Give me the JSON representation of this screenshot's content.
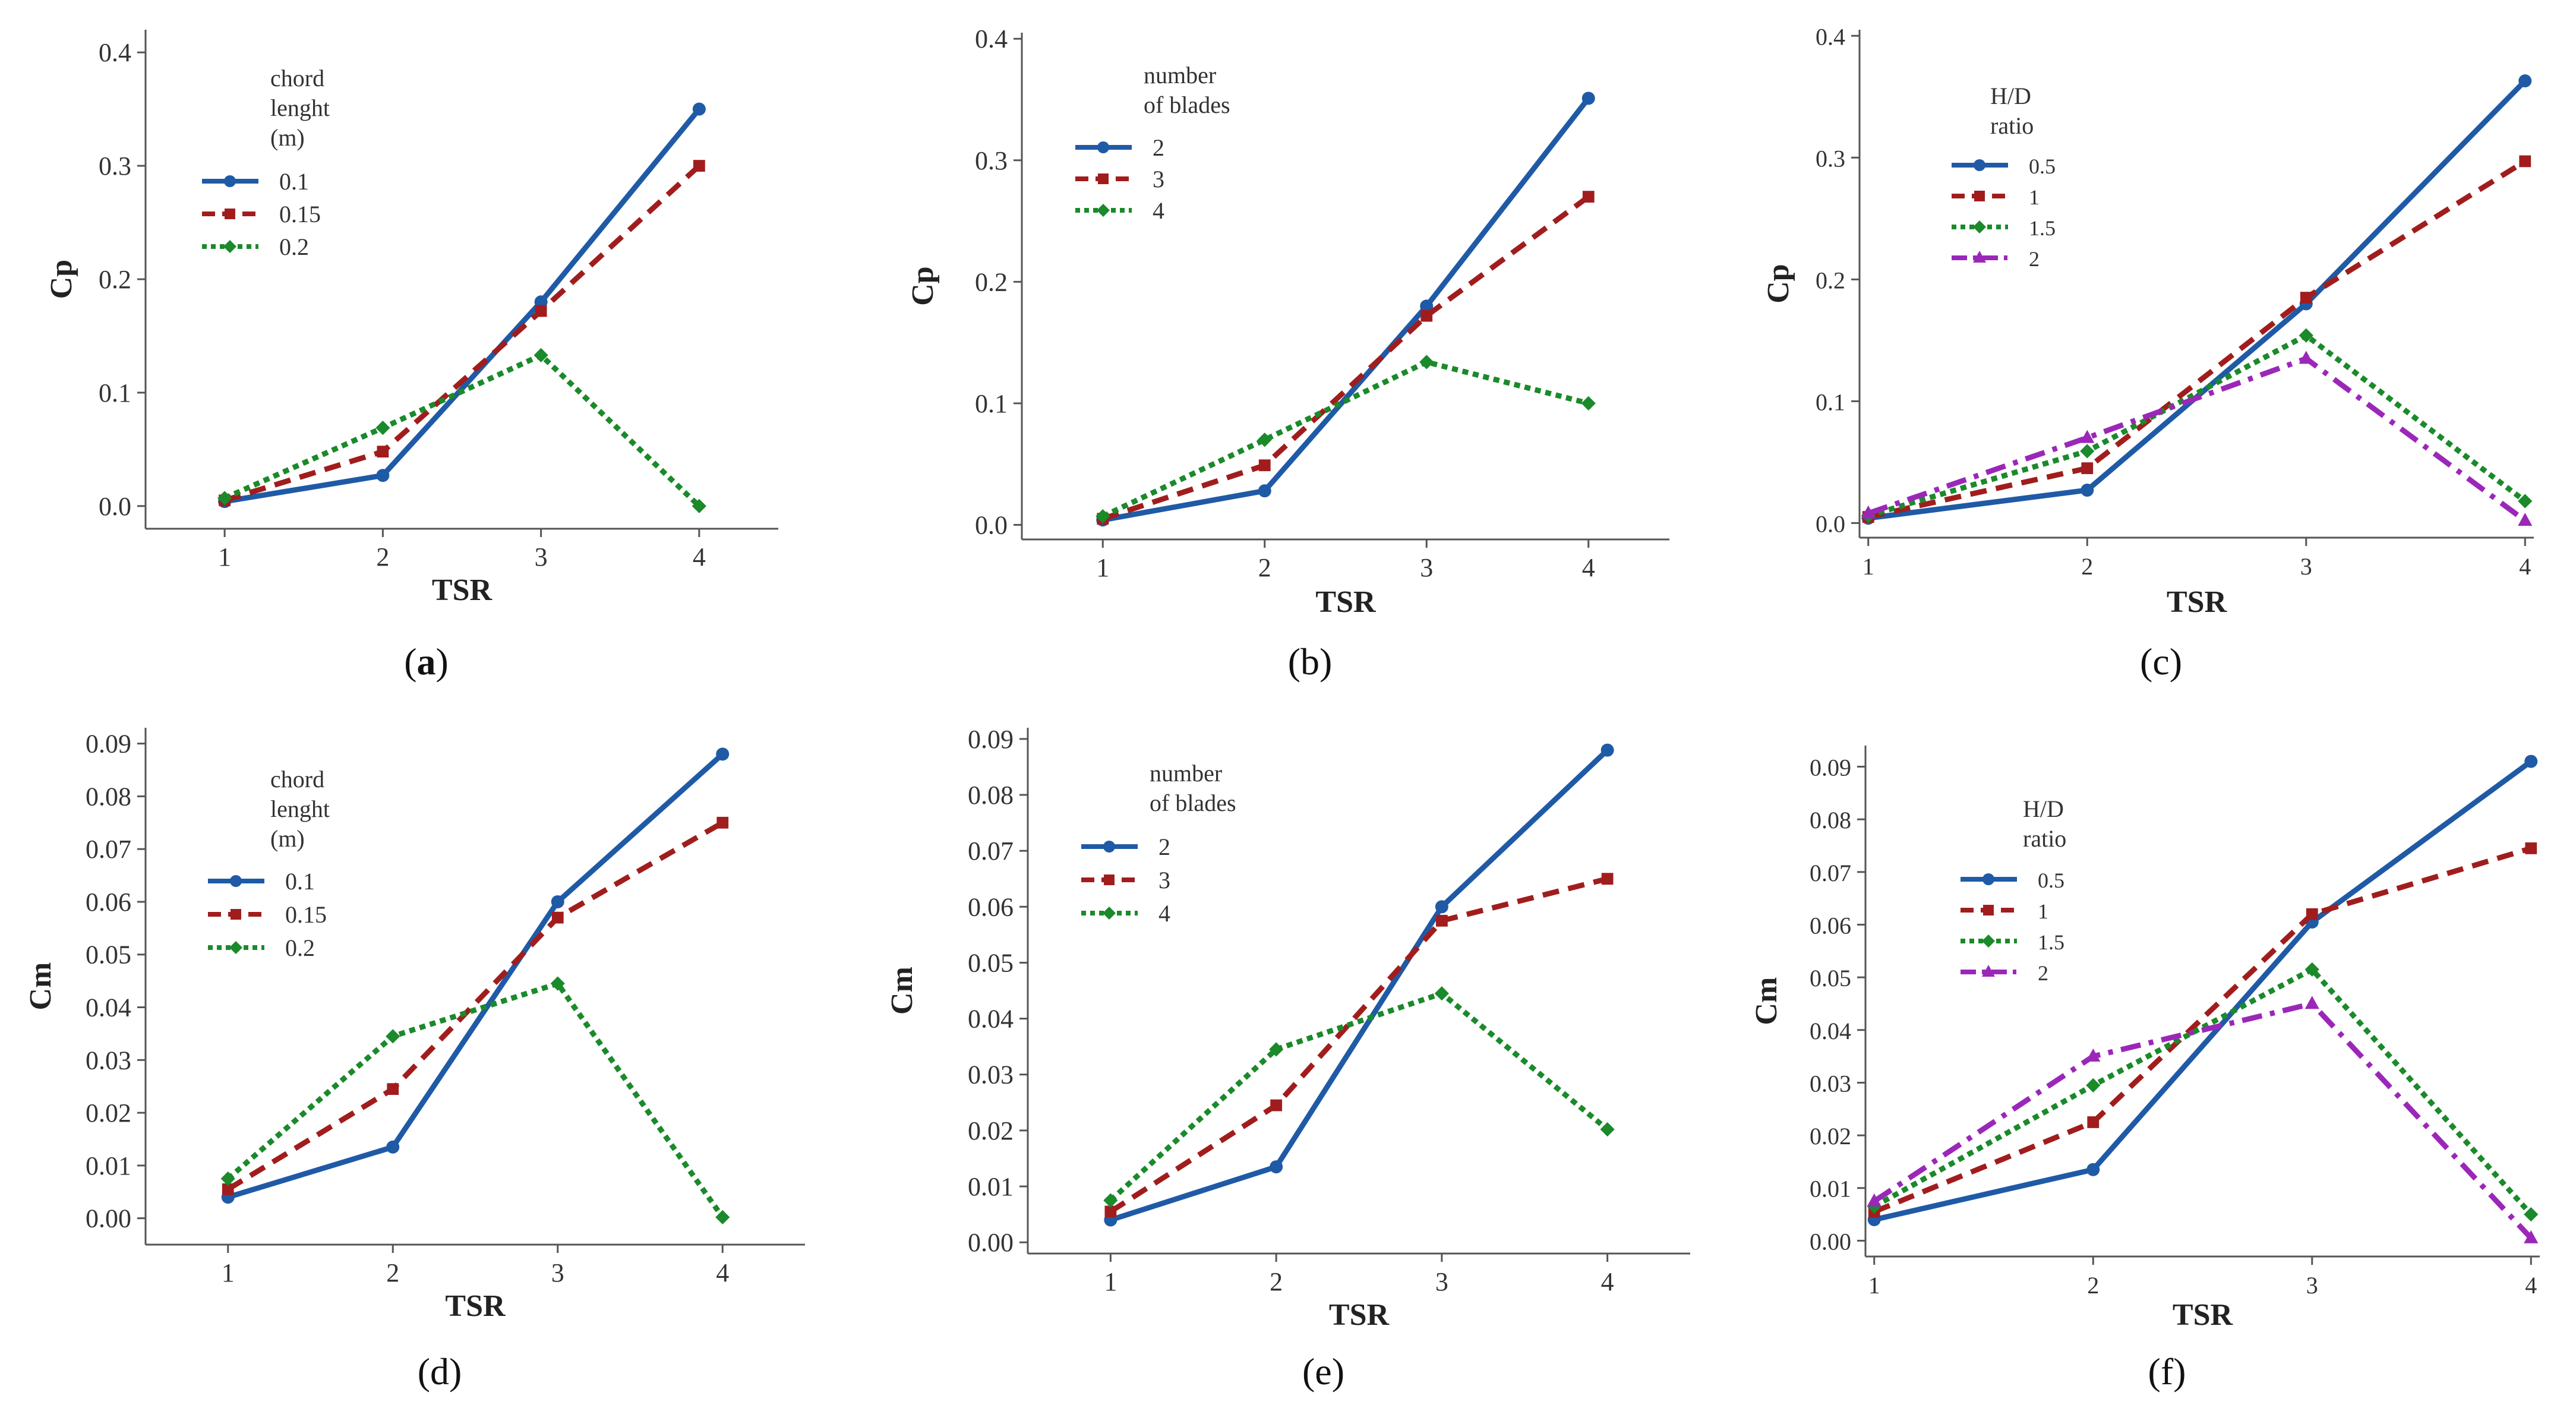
{
  "colors": {
    "blue": "#1f5aa6",
    "red": "#a11d1d",
    "green": "#1a8a2a",
    "purple": "#9b27b8",
    "axis": "#555555"
  },
  "chart_data": [
    {
      "type": "line",
      "caption": {
        "open": "(",
        "letter": "a",
        "close": ")"
      },
      "xlabel": "TSR",
      "ylabel": "Cp",
      "x": [
        1,
        2,
        3,
        4
      ],
      "xlim": [
        0.5,
        4.5
      ],
      "ylim": [
        -0.02,
        0.42
      ],
      "yticks": [
        "0.0",
        "0.1",
        "0.2",
        "0.3",
        "0.4"
      ],
      "xticks": [
        "1",
        "2",
        "3",
        "4"
      ],
      "legend_title": [
        "chord",
        "lenght",
        "(m)"
      ],
      "series": [
        {
          "name": "0.1",
          "values": [
            0.004,
            0.027,
            0.18,
            0.35
          ],
          "style": "solid",
          "color": "blue",
          "marker": "circle"
        },
        {
          "name": "0.15",
          "values": [
            0.005,
            0.048,
            0.172,
            0.3
          ],
          "style": "dashed",
          "color": "red",
          "marker": "square"
        },
        {
          "name": "0.2",
          "values": [
            0.007,
            0.069,
            0.133,
            0.0
          ],
          "style": "dotted",
          "color": "green",
          "marker": "diamond"
        }
      ]
    },
    {
      "type": "line",
      "caption": {
        "open": "(",
        "letter": "b",
        "close": ")"
      },
      "xlabel": "TSR",
      "ylabel": "Cp",
      "x": [
        1,
        2,
        3,
        4
      ],
      "xlim": [
        0.5,
        4.5
      ],
      "ylim": [
        -0.012,
        0.405
      ],
      "yticks": [
        "0.0",
        "0.1",
        "0.2",
        "0.3",
        "0.4"
      ],
      "xticks": [
        "1",
        "2",
        "3",
        "4"
      ],
      "legend_title": [
        "number",
        "of blades"
      ],
      "series": [
        {
          "name": "2",
          "values": [
            0.004,
            0.028,
            0.18,
            0.351
          ],
          "style": "solid",
          "color": "blue",
          "marker": "circle"
        },
        {
          "name": "3",
          "values": [
            0.005,
            0.049,
            0.172,
            0.27
          ],
          "style": "dashed",
          "color": "red",
          "marker": "square"
        },
        {
          "name": "4",
          "values": [
            0.007,
            0.07,
            0.134,
            0.1
          ],
          "style": "dotted",
          "color": "green",
          "marker": "diamond"
        }
      ]
    },
    {
      "type": "line",
      "caption": {
        "open": "(",
        "letter": "c",
        "close": ")"
      },
      "xlabel": "TSR",
      "ylabel": "Cp",
      "x": [
        1,
        2,
        3,
        4
      ],
      "xlim": [
        0.96,
        4.04
      ],
      "ylim": [
        -0.012,
        0.405
      ],
      "yticks": [
        "0.0",
        "0.1",
        "0.2",
        "0.3",
        "0.4"
      ],
      "xticks": [
        "1",
        "2",
        "3",
        "4"
      ],
      "legend_title": [
        "H/D",
        "ratio"
      ],
      "series": [
        {
          "name": "0.5",
          "values": [
            0.004,
            0.027,
            0.18,
            0.363
          ],
          "style": "solid",
          "color": "blue",
          "marker": "circle"
        },
        {
          "name": "1",
          "values": [
            0.005,
            0.045,
            0.185,
            0.297
          ],
          "style": "dashed",
          "color": "red",
          "marker": "square"
        },
        {
          "name": "1.5",
          "values": [
            0.006,
            0.059,
            0.154,
            0.018
          ],
          "style": "dotted",
          "color": "green",
          "marker": "diamond"
        },
        {
          "name": "2",
          "values": [
            0.008,
            0.07,
            0.135,
            0.002
          ],
          "style": "dashdot",
          "color": "purple",
          "marker": "triangle"
        }
      ]
    },
    {
      "type": "line",
      "caption": {
        "open": "(",
        "letter": "d",
        "close": ")"
      },
      "xlabel": "TSR",
      "ylabel": "Cm",
      "x": [
        1,
        2,
        3,
        4
      ],
      "xlim": [
        0.5,
        4.5
      ],
      "ylim": [
        -0.005,
        0.093
      ],
      "yticks": [
        "0.00",
        "0.01",
        "0.02",
        "0.03",
        "0.04",
        "0.05",
        "0.06",
        "0.07",
        "0.08",
        "0.09"
      ],
      "xticks": [
        "1",
        "2",
        "3",
        "4"
      ],
      "legend_title": [
        "chord",
        "lenght",
        "(m)"
      ],
      "series": [
        {
          "name": "0.1",
          "values": [
            0.004,
            0.0135,
            0.06,
            0.088
          ],
          "style": "solid",
          "color": "blue",
          "marker": "circle"
        },
        {
          "name": "0.15",
          "values": [
            0.0055,
            0.0245,
            0.057,
            0.075
          ],
          "style": "dashed",
          "color": "red",
          "marker": "square"
        },
        {
          "name": "0.2",
          "values": [
            0.0075,
            0.0345,
            0.0445,
            0.0002
          ],
          "style": "dotted",
          "color": "green",
          "marker": "diamond"
        }
      ]
    },
    {
      "type": "line",
      "caption": {
        "open": "(",
        "letter": "e",
        "close": ")"
      },
      "xlabel": "TSR",
      "ylabel": "Cm",
      "x": [
        1,
        2,
        3,
        4
      ],
      "xlim": [
        0.5,
        4.5
      ],
      "ylim": [
        -0.002,
        0.092
      ],
      "yticks": [
        "0.00",
        "0.01",
        "0.02",
        "0.03",
        "0.04",
        "0.05",
        "0.06",
        "0.07",
        "0.08",
        "0.09"
      ],
      "xticks": [
        "1",
        "2",
        "3",
        "4"
      ],
      "legend_title": [
        "number",
        "of blades"
      ],
      "series": [
        {
          "name": "2",
          "values": [
            0.004,
            0.0135,
            0.06,
            0.088
          ],
          "style": "solid",
          "color": "blue",
          "marker": "circle"
        },
        {
          "name": "3",
          "values": [
            0.0055,
            0.0245,
            0.0575,
            0.065
          ],
          "style": "dashed",
          "color": "red",
          "marker": "square"
        },
        {
          "name": "4",
          "values": [
            0.0075,
            0.0345,
            0.0445,
            0.0202
          ],
          "style": "dotted",
          "color": "green",
          "marker": "diamond"
        }
      ]
    },
    {
      "type": "line",
      "caption": {
        "open": "(",
        "letter": "f",
        "close": ")"
      },
      "xlabel": "TSR",
      "ylabel": "Cm",
      "x": [
        1,
        2,
        3,
        4
      ],
      "xlim": [
        0.96,
        4.04
      ],
      "ylim": [
        -0.003,
        0.094
      ],
      "yticks": [
        "0.00",
        "0.01",
        "0.02",
        "0.03",
        "0.04",
        "0.05",
        "0.06",
        "0.07",
        "0.08",
        "0.09"
      ],
      "xticks": [
        "1",
        "2",
        "3",
        "4"
      ],
      "legend_title": [
        "H/D",
        "ratio"
      ],
      "series": [
        {
          "name": "0.5",
          "values": [
            0.004,
            0.0135,
            0.0605,
            0.091
          ],
          "style": "solid",
          "color": "blue",
          "marker": "circle"
        },
        {
          "name": "1",
          "values": [
            0.0055,
            0.0225,
            0.062,
            0.0745
          ],
          "style": "dashed",
          "color": "red",
          "marker": "square"
        },
        {
          "name": "1.5",
          "values": [
            0.0065,
            0.0295,
            0.0515,
            0.005
          ],
          "style": "dotted",
          "color": "green",
          "marker": "diamond"
        },
        {
          "name": "2",
          "values": [
            0.0075,
            0.035,
            0.045,
            0.0005
          ],
          "style": "dashdot",
          "color": "purple",
          "marker": "triangle"
        }
      ]
    }
  ]
}
